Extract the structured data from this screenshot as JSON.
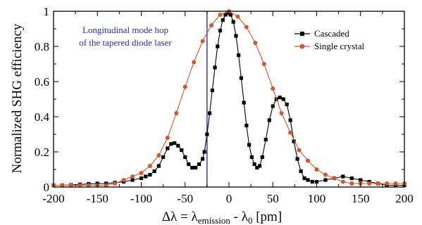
{
  "chart_data": {
    "type": "line",
    "xlabel": "Δλ = λ",
    "xlabel_sub1": "emission",
    "xlabel_mid": " - λ",
    "xlabel_sub2": "0",
    "xlabel_unit": "  [pm]",
    "ylabel": "Normalized SHG efficiency",
    "xlim": [
      -200,
      200
    ],
    "ylim": [
      0,
      1
    ],
    "xticks": [
      -200,
      -150,
      -100,
      -50,
      0,
      50,
      100,
      150,
      200
    ],
    "yticks": [
      0,
      0.2,
      0.4,
      0.6,
      0.8,
      1
    ],
    "ytick_labels": [
      "0",
      "0.2",
      "0.4",
      "0.6",
      "0.8",
      "1"
    ],
    "grid": false,
    "legend_position": "top-right",
    "annotation": {
      "line1": "Longitudinal mode hop",
      "line2": "of the tapered diode laser",
      "x": -25,
      "color": "#2a2ad4"
    },
    "series": [
      {
        "name": "Cascaded",
        "color": "#000000",
        "marker": "square",
        "x": [
          -200,
          -190,
          -180,
          -170,
          -160,
          -150,
          -140,
          -130,
          -120,
          -110,
          -100,
          -95,
          -90,
          -85,
          -80,
          -75,
          -70,
          -66,
          -62,
          -58,
          -54,
          -50,
          -46,
          -42,
          -38,
          -34,
          -30,
          -28,
          -25,
          -22,
          -19,
          -16,
          -13,
          -10,
          -7,
          -4,
          -1,
          2,
          5,
          8,
          11,
          14,
          17,
          20,
          23,
          26,
          29,
          32,
          35,
          38,
          42,
          46,
          50,
          54,
          58,
          62,
          66,
          70,
          74,
          78,
          82,
          86,
          90,
          95,
          100,
          110,
          120,
          130,
          140,
          150,
          160,
          170,
          180,
          190,
          200
        ],
        "y": [
          0.01,
          0.01,
          0.012,
          0.015,
          0.018,
          0.02,
          0.02,
          0.025,
          0.03,
          0.04,
          0.05,
          0.06,
          0.07,
          0.09,
          0.12,
          0.17,
          0.22,
          0.245,
          0.25,
          0.235,
          0.21,
          0.17,
          0.13,
          0.11,
          0.11,
          0.13,
          0.16,
          0.2,
          0.3,
          0.42,
          0.55,
          0.68,
          0.8,
          0.89,
          0.95,
          0.98,
          0.99,
          0.98,
          0.94,
          0.86,
          0.75,
          0.62,
          0.48,
          0.35,
          0.24,
          0.17,
          0.13,
          0.11,
          0.12,
          0.17,
          0.27,
          0.38,
          0.46,
          0.5,
          0.51,
          0.5,
          0.47,
          0.38,
          0.26,
          0.16,
          0.09,
          0.05,
          0.04,
          0.03,
          0.03,
          0.04,
          0.05,
          0.06,
          0.05,
          0.04,
          0.03,
          0.02,
          0.01,
          0.01,
          0.01
        ]
      },
      {
        "name": "Single crystal",
        "color": "#d9542b",
        "marker": "circle",
        "x": [
          -200,
          -190,
          -180,
          -170,
          -160,
          -150,
          -140,
          -130,
          -120,
          -110,
          -100,
          -90,
          -80,
          -70,
          -60,
          -50,
          -40,
          -30,
          -20,
          -10,
          0,
          10,
          20,
          30,
          40,
          50,
          60,
          70,
          80,
          90,
          100,
          110,
          120,
          130,
          140,
          150,
          160,
          170,
          180,
          190,
          200
        ],
        "y": [
          0.01,
          0.01,
          0.01,
          0.01,
          0.01,
          0.01,
          0.01,
          0.02,
          0.04,
          0.06,
          0.08,
          0.12,
          0.18,
          0.28,
          0.42,
          0.57,
          0.71,
          0.83,
          0.92,
          0.98,
          1.0,
          0.97,
          0.91,
          0.82,
          0.7,
          0.56,
          0.42,
          0.31,
          0.21,
          0.15,
          0.1,
          0.07,
          0.05,
          0.03,
          0.02,
          0.02,
          0.02,
          0.02,
          0.02,
          0.02,
          0.02
        ]
      }
    ]
  }
}
